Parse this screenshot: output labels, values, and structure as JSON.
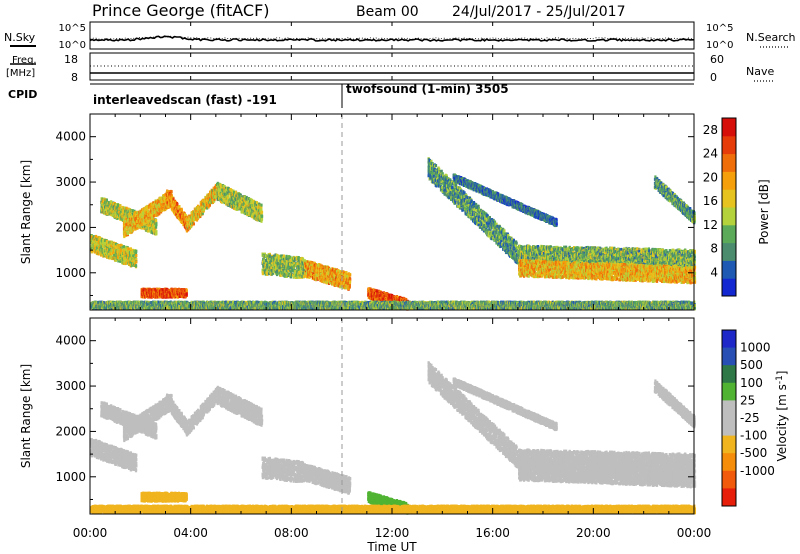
{
  "header": {
    "station": "Prince George (fitACF)",
    "beam": "Beam 00",
    "dates": "24/Jul/2017 - 25/Jul/2017"
  },
  "panels": {
    "nsky": {
      "label": "N.Sky",
      "ticks_left": [
        "10^5",
        "10^0"
      ],
      "ticks_right": [
        "10^5",
        "10^0"
      ],
      "legend": "N.Search"
    },
    "freq": {
      "label_1": "Freq.",
      "label_2": "[MHz]",
      "ticks_left": [
        "18",
        "8"
      ],
      "ticks_right": [
        "60",
        "0"
      ],
      "legend": "Nave"
    },
    "cpid": {
      "label": "CPID",
      "segments": [
        {
          "text": "interleavedscan (fast) -191",
          "start_hour": 0
        },
        {
          "text": "twofsound (1-min) 3505",
          "start_hour": 10
        }
      ]
    }
  },
  "colors": {
    "power": [
      "#1428d2",
      "#1e5ab4",
      "#4b8c6e",
      "#5aaa5a",
      "#b4d23c",
      "#e6c31e",
      "#f5a00a",
      "#f06e0a",
      "#e63c0a",
      "#d70f0a"
    ],
    "velocity": [
      "#1e28c8",
      "#2850b4",
      "#2d7846",
      "#50b432",
      "#bebebe",
      "#bebebe",
      "#f0b41e",
      "#f58c0a",
      "#f05a0a",
      "#e61e0a"
    ]
  },
  "chart_data": [
    {
      "type": "heatmap",
      "title": "Power",
      "ylabel": "Slant Range [km]",
      "xlabel": "Time UT",
      "x_ticks": [
        "00:00",
        "04:00",
        "08:00",
        "12:00",
        "16:00",
        "20:00",
        "00:00"
      ],
      "x_range_hours": [
        0,
        24
      ],
      "y_ticks": [
        "1000",
        "2000",
        "3000",
        "4000"
      ],
      "ylim": [
        180,
        4500
      ],
      "colorbar": {
        "label": "Power [dB]",
        "ticks": [
          "4",
          "8",
          "12",
          "16",
          "20",
          "24",
          "28"
        ],
        "range": [
          0,
          30
        ]
      },
      "bands": [
        {
          "t_start": 0.0,
          "t_end": 1.8,
          "range_start": 1650,
          "range_end": 1300,
          "width": 380,
          "value": 15
        },
        {
          "t_start": 0.4,
          "t_end": 2.6,
          "range_start": 2500,
          "range_end": 2000,
          "width": 320,
          "value": 14
        },
        {
          "t_start": 1.3,
          "t_end": 3.2,
          "range_start": 1950,
          "range_end": 2650,
          "width": 340,
          "value": 18
        },
        {
          "t_start": 3.0,
          "t_end": 3.8,
          "range_start": 2700,
          "range_end": 2100,
          "width": 300,
          "value": 21
        },
        {
          "t_start": 3.8,
          "t_end": 5.0,
          "range_start": 2050,
          "range_end": 2800,
          "width": 300,
          "value": 17
        },
        {
          "t_start": 5.0,
          "t_end": 6.8,
          "range_start": 2800,
          "range_end": 2300,
          "width": 380,
          "value": 13
        },
        {
          "t_start": 6.8,
          "t_end": 8.5,
          "range_start": 1200,
          "range_end": 1100,
          "width": 450,
          "value": 12
        },
        {
          "t_start": 8.5,
          "t_end": 10.3,
          "range_start": 1100,
          "range_end": 800,
          "width": 360,
          "value": 19
        },
        {
          "t_start": 11.0,
          "t_end": 12.6,
          "range_start": 550,
          "range_end": 300,
          "width": 220,
          "value": 25
        },
        {
          "t_start": 2.0,
          "t_end": 3.8,
          "range_start": 550,
          "range_end": 550,
          "width": 180,
          "value": 25
        },
        {
          "t_start": 13.4,
          "t_end": 17.0,
          "range_start": 3300,
          "range_end": 1400,
          "width": 450,
          "value": 9
        },
        {
          "t_start": 14.4,
          "t_end": 18.5,
          "range_start": 3100,
          "range_end": 2100,
          "width": 150,
          "value": 6
        },
        {
          "t_start": 17.0,
          "t_end": 24.0,
          "range_start": 1400,
          "range_end": 1300,
          "width": 400,
          "value": 11
        },
        {
          "t_start": 17.0,
          "t_end": 24.0,
          "range_start": 1100,
          "range_end": 950,
          "width": 350,
          "value": 18
        },
        {
          "t_start": 22.4,
          "t_end": 24.0,
          "range_start": 3000,
          "range_end": 2200,
          "width": 250,
          "value": 9
        },
        {
          "t_start": 0.0,
          "t_end": 24.0,
          "range_start": 280,
          "range_end": 280,
          "width": 150,
          "value": 10
        }
      ]
    },
    {
      "type": "heatmap",
      "title": "Velocity",
      "ylabel": "Slant Range [km]",
      "xlabel": "Time UT",
      "x_ticks": [
        "00:00",
        "04:00",
        "08:00",
        "12:00",
        "16:00",
        "20:00",
        "00:00"
      ],
      "x_range_hours": [
        0,
        24
      ],
      "y_ticks": [
        "1000",
        "2000",
        "3000",
        "4000"
      ],
      "ylim": [
        180,
        4500
      ],
      "colorbar": {
        "label": "Velocity [m s^-1]",
        "ticks": [
          "1000",
          "500",
          "100",
          "25",
          "-25",
          "-100",
          "-500",
          "-1000"
        ]
      },
      "bands": [
        {
          "t_start": 0.0,
          "t_end": 1.8,
          "range_start": 1650,
          "range_end": 1300,
          "width": 380,
          "value": 0
        },
        {
          "t_start": 0.4,
          "t_end": 2.6,
          "range_start": 2500,
          "range_end": 2000,
          "width": 320,
          "value": 0
        },
        {
          "t_start": 1.3,
          "t_end": 3.2,
          "range_start": 1950,
          "range_end": 2650,
          "width": 340,
          "value": 0
        },
        {
          "t_start": 3.0,
          "t_end": 3.8,
          "range_start": 2700,
          "range_end": 2100,
          "width": 300,
          "value": 0
        },
        {
          "t_start": 3.8,
          "t_end": 5.0,
          "range_start": 2050,
          "range_end": 2800,
          "width": 300,
          "value": 0
        },
        {
          "t_start": 5.0,
          "t_end": 6.8,
          "range_start": 2800,
          "range_end": 2300,
          "width": 380,
          "value": 0
        },
        {
          "t_start": 6.8,
          "t_end": 8.5,
          "range_start": 1200,
          "range_end": 1100,
          "width": 450,
          "value": 0
        },
        {
          "t_start": 8.5,
          "t_end": 10.3,
          "range_start": 1100,
          "range_end": 800,
          "width": 360,
          "value": 0
        },
        {
          "t_start": 11.0,
          "t_end": 12.6,
          "range_start": 550,
          "range_end": 300,
          "width": 220,
          "value": 60
        },
        {
          "t_start": 2.0,
          "t_end": 3.8,
          "range_start": 550,
          "range_end": 550,
          "width": 180,
          "value": -60
        },
        {
          "t_start": 13.4,
          "t_end": 17.0,
          "range_start": 3300,
          "range_end": 1400,
          "width": 450,
          "value": 0
        },
        {
          "t_start": 14.4,
          "t_end": 18.5,
          "range_start": 3100,
          "range_end": 2100,
          "width": 150,
          "value": 0
        },
        {
          "t_start": 17.0,
          "t_end": 24.0,
          "range_start": 1400,
          "range_end": 1300,
          "width": 400,
          "value": 0
        },
        {
          "t_start": 17.0,
          "t_end": 24.0,
          "range_start": 1100,
          "range_end": 950,
          "width": 350,
          "value": 0
        },
        {
          "t_start": 22.4,
          "t_end": 24.0,
          "range_start": 3000,
          "range_end": 2200,
          "width": 250,
          "value": 0
        },
        {
          "t_start": 0.0,
          "t_end": 24.0,
          "range_start": 280,
          "range_end": 280,
          "width": 150,
          "value": -60
        }
      ]
    }
  ]
}
